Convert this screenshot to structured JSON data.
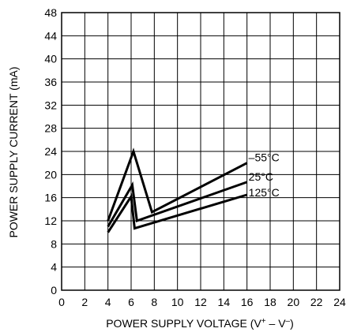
{
  "chart_data": {
    "type": "line",
    "title": "",
    "xlabel": "POWER SUPPLY VOLTAGE (V",
    "xlabel_sup1": "+",
    "xlabel_mid": " – V",
    "xlabel_sup2": "–",
    "xlabel_end": ")",
    "ylabel": "POWER SUPPLY CURRENT (mA)",
    "xlim": [
      0,
      24
    ],
    "ylim": [
      0,
      48
    ],
    "x_ticks": [
      0,
      2,
      4,
      6,
      8,
      10,
      12,
      14,
      16,
      18,
      20,
      22,
      24
    ],
    "y_ticks": [
      0,
      4,
      8,
      12,
      16,
      20,
      24,
      28,
      32,
      36,
      40,
      44,
      48
    ],
    "grid": true,
    "series": [
      {
        "name": "–55°C",
        "points": [
          [
            4,
            12
          ],
          [
            6.2,
            24
          ],
          [
            7.8,
            13.5
          ],
          [
            16,
            22
          ]
        ]
      },
      {
        "name": "25°C",
        "points": [
          [
            4,
            11
          ],
          [
            6.1,
            18.2
          ],
          [
            6.5,
            12
          ],
          [
            16,
            18.7
          ]
        ]
      },
      {
        "name": "125°C",
        "points": [
          [
            4,
            10
          ],
          [
            6,
            16.2
          ],
          [
            6.3,
            10.7
          ],
          [
            16,
            16.5
          ]
        ]
      }
    ]
  }
}
